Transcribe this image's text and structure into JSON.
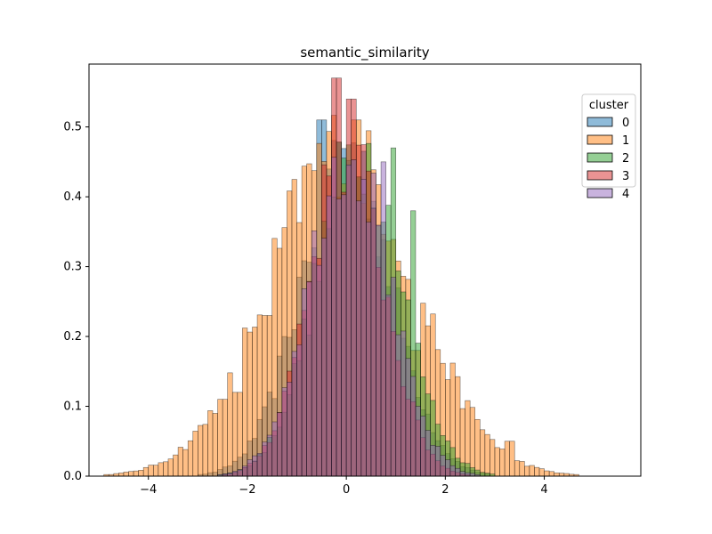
{
  "chart_data": {
    "type": "histogram",
    "title": "semantic_similarity",
    "xlabel": "",
    "ylabel": "",
    "xlim": [
      -5.2,
      5.95
    ],
    "ylim": [
      0,
      0.59
    ],
    "xticks": [
      -4,
      -2,
      0,
      2,
      4
    ],
    "yticks": [
      0.0,
      0.1,
      0.2,
      0.3,
      0.4,
      0.5
    ],
    "bin_width": 0.1,
    "grid": false,
    "legend": {
      "title": "cluster",
      "position": "top-right"
    },
    "series": [
      {
        "name": "0",
        "color": "#1f77b4",
        "fill": "rgba(31,119,180,0.5)",
        "mu": 0.0,
        "sigma": 0.9,
        "scale": 1.0,
        "peak_x": -0.5,
        "peak_y": 0.51
      },
      {
        "name": "1",
        "color": "#ff7f0e",
        "fill": "rgba(255,127,14,0.5)",
        "mu": -0.1,
        "sigma": 1.45,
        "scale": 1.0,
        "spikes": [
          [
            -2.5,
            0.11
          ],
          [
            -2.2,
            0.12
          ],
          [
            -1.6,
            0.23
          ],
          [
            0.2,
            0.51
          ],
          [
            1.4,
            0.18
          ],
          [
            3.3,
            0.05
          ]
        ]
      },
      {
        "name": "2",
        "color": "#2ca02c",
        "fill": "rgba(44,160,44,0.5)",
        "mu": 0.25,
        "sigma": 0.85,
        "scale": 1.0,
        "spikes": [
          [
            0.95,
            0.47
          ],
          [
            1.35,
            0.38
          ]
        ]
      },
      {
        "name": "3",
        "color": "#d62728",
        "fill": "rgba(214,39,40,0.5)",
        "mu": 0.0,
        "sigma": 0.75,
        "scale": 1.0,
        "spikes": [
          [
            -0.2,
            0.57
          ],
          [
            0.1,
            0.54
          ]
        ]
      },
      {
        "name": "4",
        "color": "#9467bd",
        "fill": "rgba(148,103,189,0.5)",
        "mu": 0.05,
        "sigma": 0.8,
        "scale": 1.0,
        "spikes": [
          [
            0.75,
            0.45
          ]
        ]
      }
    ]
  }
}
